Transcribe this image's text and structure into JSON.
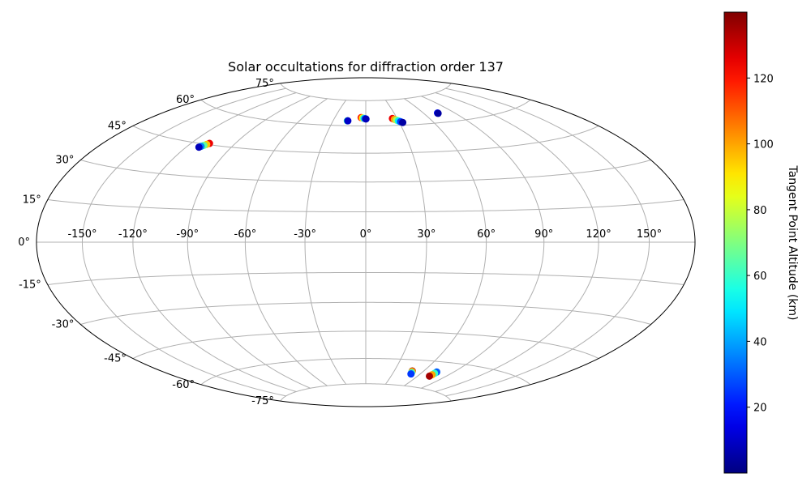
{
  "chart_data": {
    "type": "scatter",
    "projection": "hammer",
    "title": "Solar occultations for diffraction order 137",
    "xlabel": "",
    "ylabel": "",
    "grid": true,
    "longitude_ticks": [
      -150,
      -120,
      -90,
      -60,
      -30,
      0,
      30,
      60,
      90,
      120,
      150
    ],
    "longitude_tick_labels": [
      "-150°",
      "-120°",
      "-90°",
      "-60°",
      "-30°",
      "0°",
      "30°",
      "60°",
      "90°",
      "120°",
      "150°"
    ],
    "latitude_ticks": [
      75,
      60,
      45,
      30,
      15,
      0,
      -15,
      -30,
      -45,
      -60,
      -75
    ],
    "latitude_tick_labels": [
      "75°",
      "60°",
      "45°",
      "30°",
      "15°",
      "0°",
      "-15°",
      "-30°",
      "-45°",
      "-60°",
      "-75°"
    ],
    "colorbar": {
      "label": "Tangent Point Altitude (km)",
      "colormap": "jet",
      "range": [
        0,
        140
      ],
      "ticks": [
        20,
        40,
        60,
        80,
        100,
        120
      ],
      "tick_labels": [
        "20",
        "40",
        "60",
        "80",
        "100",
        "120"
      ]
    },
    "series": [
      {
        "lon": [
          -107.5,
          -108.6,
          -109.7,
          -110.8,
          -111.5
        ],
        "lat": [
          45.6,
          45.0,
          44.4,
          43.8,
          43.3
        ],
        "altitude": [
          125,
          95,
          65,
          35,
          8
        ]
      },
      {
        "lon": [
          -17.0,
          -16.5
        ],
        "lat": [
          62.8,
          62.8
        ],
        "altitude": [
          60,
          10
        ]
      },
      {
        "lon": [
          -4.5,
          -3.2,
          -2.0,
          -0.8,
          0.2
        ],
        "lat": [
          64.8,
          64.6,
          64.4,
          64.2,
          64.0
        ],
        "altitude": [
          120,
          90,
          60,
          30,
          8
        ]
      },
      {
        "lon": [
          25.5,
          27.0,
          28.5,
          30.0,
          31.5,
          33.0
        ],
        "lat": [
          64.0,
          63.5,
          63.0,
          62.5,
          62.0,
          61.5
        ],
        "altitude": [
          125,
          100,
          75,
          50,
          25,
          5
        ]
      },
      {
        "lon": [
          73.8,
          73.9
        ],
        "lat": [
          65.2,
          65.0
        ],
        "altitude": [
          20,
          5
        ]
      },
      {
        "lon": [
          48.5,
          48.8,
          49.5,
          50.2
        ],
        "lat": [
          -66.3,
          -66.6,
          -67.3,
          -68.0
        ],
        "altitude": [
          135,
          100,
          60,
          25
        ]
      },
      {
        "lon": [
          74.0,
          73.7,
          73.3,
          72.8
        ],
        "lat": [
          -65.6,
          -66.4,
          -67.3,
          -68.2
        ],
        "altitude": [
          30,
          60,
          100,
          135
        ]
      }
    ]
  }
}
